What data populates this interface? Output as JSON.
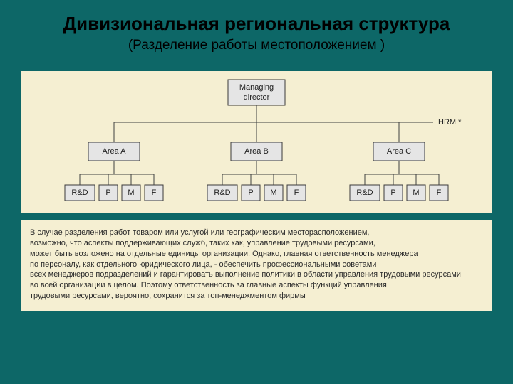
{
  "slide": {
    "bg_color": "#0d6767",
    "title": "Дивизиональная региональная структура",
    "title_color": "#000000",
    "title_fontsize": 26,
    "subtitle": "(Разделение работы местоположением )",
    "subtitle_color": "#000000",
    "subtitle_fontsize": 19
  },
  "panel": {
    "bg_color": "#f5efd2",
    "node_fill": "#e5e5e5",
    "node_stroke": "#3a3a3a",
    "line_color": "#404040",
    "text_color": "#222222",
    "font_family": "Helvetica, Arial, sans-serif",
    "label_fontsize": 11
  },
  "orgchart": {
    "type": "tree",
    "root": {
      "label_line1": "Managing",
      "label_line2": "director"
    },
    "side_label": "HRM *",
    "areas": [
      {
        "label": "Area A",
        "children": [
          "R&D",
          "P",
          "M",
          "F"
        ]
      },
      {
        "label": "Area B",
        "children": [
          "R&D",
          "P",
          "M",
          "F"
        ]
      },
      {
        "label": "Area C",
        "children": [
          "R&D",
          "P",
          "M",
          "F"
        ]
      }
    ]
  },
  "caption": {
    "text_color": "#2b2b2b",
    "fontsize": 11,
    "lines": [
      "В случае разделения работ товаром или услугой или географическим месторасположением,",
      "возможно, что  аспекты поддерживающих служб, таких как, управление трудовыми ресурсами,",
      "может быть возложено на отдельные единицы организации. Однако, главная ответственность менеджера",
      "по персоналу, как отдельного юридического лица, - обеспечить профессиональными советами",
      "всех менеджеров подразделений и гарантировать выполнение политики в области управления трудовыми ресурсами",
      "во всей организации в целом. Поэтому ответственность за главные аспекты функций управления",
      "трудовыми ресурсами, вероятно, сохранится за топ-менеджментом фирмы"
    ]
  }
}
